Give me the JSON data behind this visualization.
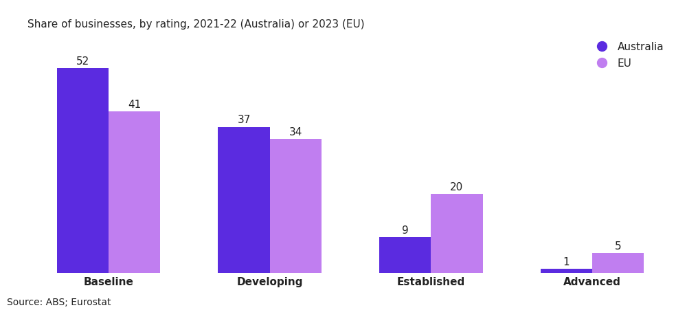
{
  "categories": [
    "Baseline",
    "Developing",
    "Established",
    "Advanced"
  ],
  "australia_values": [
    52,
    37,
    9,
    1
  ],
  "eu_values": [
    41,
    34,
    20,
    5
  ],
  "australia_color": "#5B2BE0",
  "eu_color": "#C07EF0",
  "title": "Share of businesses, by rating, 2021-22 (Australia) or 2023 (EU)",
  "source": "Source: ABS; Eurostat",
  "legend_australia": "Australia",
  "legend_eu": "EU",
  "bar_width": 0.32,
  "ylim": [
    0,
    60
  ],
  "label_fontsize": 11,
  "title_fontsize": 11,
  "source_fontsize": 10,
  "tick_fontsize": 11,
  "background_color": "#ffffff"
}
